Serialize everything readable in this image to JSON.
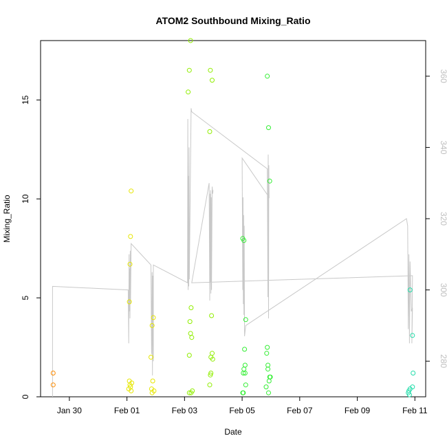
{
  "chart_data": {
    "type": "scatter",
    "title": "ATOM2 Southbound Mixing_Ratio",
    "xlabel": "Date",
    "ylabel": "Mixing_Ratio",
    "xlim": [
      "2017-01-29 00:00",
      "2017-02-11 09:00"
    ],
    "ylim": [
      0,
      18
    ],
    "y2lim": [
      270,
      370
    ],
    "x_ticks": [
      {
        "date": "2017-01-30",
        "label": "Jan 30"
      },
      {
        "date": "2017-02-01",
        "label": "Feb 01"
      },
      {
        "date": "2017-02-03",
        "label": "Feb 03"
      },
      {
        "date": "2017-02-05",
        "label": "Feb 05"
      },
      {
        "date": "2017-02-07",
        "label": "Feb 07"
      },
      {
        "date": "2017-02-09",
        "label": "Feb 09"
      },
      {
        "date": "2017-02-11",
        "label": "Feb 11"
      }
    ],
    "y_ticks": [
      0,
      5,
      10,
      15
    ],
    "y2_ticks": [
      280,
      300,
      320,
      340,
      360
    ],
    "grid": false,
    "legend": "none",
    "point_series": [
      {
        "color": "#ff8c00",
        "points": [
          [
            "2017-01-29 10:30",
            1.2
          ],
          [
            "2017-01-29 10:30",
            0.6
          ]
        ]
      },
      {
        "color": "#e6e600",
        "points": [
          [
            "2017-02-01 02:00",
            4.8
          ],
          [
            "2017-02-01 02:30",
            6.7
          ],
          [
            "2017-02-01 03:00",
            8.1
          ],
          [
            "2017-02-01 03:30",
            10.4
          ],
          [
            "2017-02-01 02:00",
            0.8
          ],
          [
            "2017-02-01 02:30",
            0.6
          ],
          [
            "2017-02-01 03:00",
            0.5
          ],
          [
            "2017-02-01 01:30",
            0.4
          ],
          [
            "2017-02-01 03:30",
            0.3
          ],
          [
            "2017-02-01 04:00",
            0.7
          ],
          [
            "2017-02-01 20:00",
            2.0
          ],
          [
            "2017-02-01 21:00",
            3.6
          ],
          [
            "2017-02-01 22:00",
            4.0
          ],
          [
            "2017-02-01 21:30",
            0.8
          ],
          [
            "2017-02-01 20:30",
            0.4
          ],
          [
            "2017-02-01 22:30",
            0.3
          ],
          [
            "2017-02-01 21:00",
            0.2
          ]
        ]
      },
      {
        "color": "#90ee00",
        "points": [
          [
            "2017-02-03 03:00",
            15.4
          ],
          [
            "2017-02-03 04:00",
            16.5
          ],
          [
            "2017-02-03 05:00",
            18.0
          ],
          [
            "2017-02-03 04:00",
            2.1
          ],
          [
            "2017-02-03 05:00",
            3.2
          ],
          [
            "2017-02-03 06:00",
            3.0
          ],
          [
            "2017-02-03 04:30",
            3.8
          ],
          [
            "2017-02-03 05:30",
            4.5
          ],
          [
            "2017-02-03 04:00",
            0.2
          ],
          [
            "2017-02-03 05:30",
            0.2
          ],
          [
            "2017-02-03 06:30",
            0.3
          ],
          [
            "2017-02-03 21:00",
            13.4
          ],
          [
            "2017-02-03 21:30",
            16.5
          ],
          [
            "2017-02-03 23:00",
            16.0
          ],
          [
            "2017-02-03 22:30",
            4.1
          ],
          [
            "2017-02-03 22:00",
            2.0
          ],
          [
            "2017-02-03 23:00",
            2.2
          ],
          [
            "2017-02-03 21:30",
            1.1
          ],
          [
            "2017-02-03 22:00",
            1.2
          ],
          [
            "2017-02-03 23:30",
            1.9
          ],
          [
            "2017-02-03 21:00",
            0.6
          ]
        ]
      },
      {
        "color": "#33ee33",
        "points": [
          [
            "2017-02-05 00:30",
            8.0
          ],
          [
            "2017-02-05 01:30",
            7.9
          ],
          [
            "2017-02-05 03:00",
            3.9
          ],
          [
            "2017-02-05 02:00",
            2.4
          ],
          [
            "2017-02-05 02:30",
            1.6
          ],
          [
            "2017-02-05 01:30",
            1.4
          ],
          [
            "2017-02-05 02:30",
            1.2
          ],
          [
            "2017-02-05 01:00",
            1.2
          ],
          [
            "2017-02-05 03:00",
            0.6
          ],
          [
            "2017-02-05 01:00",
            0.2
          ],
          [
            "2017-02-05 00:30",
            0.2
          ],
          [
            "2017-02-05 21:00",
            16.2
          ],
          [
            "2017-02-05 22:00",
            13.6
          ],
          [
            "2017-02-05 23:00",
            10.9
          ],
          [
            "2017-02-05 21:00",
            2.5
          ],
          [
            "2017-02-05 20:30",
            2.2
          ],
          [
            "2017-02-05 21:30",
            1.6
          ],
          [
            "2017-02-05 21:30",
            1.4
          ],
          [
            "2017-02-05 23:00",
            1.0
          ],
          [
            "2017-02-05 22:30",
            0.8
          ],
          [
            "2017-02-05 23:30",
            1.0
          ],
          [
            "2017-02-05 20:00",
            0.5
          ],
          [
            "2017-02-05 22:00",
            0.2
          ]
        ]
      },
      {
        "color": "#22ddaa",
        "points": [
          [
            "2017-02-10 20:00",
            5.4
          ],
          [
            "2017-02-10 22:00",
            3.1
          ],
          [
            "2017-02-10 22:30",
            1.2
          ],
          [
            "2017-02-10 22:00",
            0.5
          ],
          [
            "2017-02-10 20:00",
            0.4
          ],
          [
            "2017-02-10 19:00",
            0.3
          ],
          [
            "2017-02-10 18:30",
            0.2
          ],
          [
            "2017-02-10 19:30",
            0.1
          ]
        ]
      }
    ],
    "line_series": {
      "color": "#c8c8c8",
      "axis": "right",
      "points": [
        [
          "2017-01-29 10:00",
          270
        ],
        [
          "2017-01-29 10:00",
          301
        ],
        [
          "2017-02-01 01:00",
          300
        ],
        [
          "2017-02-01 01:30",
          285
        ],
        [
          "2017-02-01 01:45",
          310
        ],
        [
          "2017-02-01 02:00",
          294
        ],
        [
          "2017-02-01 02:15",
          306
        ],
        [
          "2017-02-01 02:30",
          292
        ],
        [
          "2017-02-01 02:45",
          311
        ],
        [
          "2017-02-01 03:00",
          296
        ],
        [
          "2017-02-01 03:30",
          313
        ],
        [
          "2017-02-01 20:00",
          307
        ],
        [
          "2017-02-01 20:30",
          282
        ],
        [
          "2017-02-01 21:00",
          305
        ],
        [
          "2017-02-01 21:15",
          276
        ],
        [
          "2017-02-01 21:30",
          304
        ],
        [
          "2017-02-01 22:00",
          280
        ],
        [
          "2017-02-01 22:00",
          307
        ],
        [
          "2017-02-03 02:30",
          302
        ],
        [
          "2017-02-03 02:45",
          348
        ],
        [
          "2017-02-03 03:00",
          300
        ],
        [
          "2017-02-03 03:15",
          332
        ],
        [
          "2017-02-03 03:30",
          301
        ],
        [
          "2017-02-03 03:45",
          340
        ],
        [
          "2017-02-03 04:00",
          303
        ],
        [
          "2017-02-03 05:30",
          351
        ],
        [
          "2017-02-03 06:00",
          350
        ],
        [
          "2017-02-05 21:00",
          334
        ],
        [
          "2017-02-05 21:30",
          298
        ],
        [
          "2017-02-05 21:45",
          338
        ],
        [
          "2017-02-05 22:00",
          292
        ],
        [
          "2017-02-05 22:15",
          335
        ],
        [
          "2017-02-05 22:30",
          326
        ],
        [
          "2017-02-05 00:00",
          337
        ],
        [
          "2017-02-05 00:30",
          300
        ],
        [
          "2017-02-05 00:45",
          326
        ],
        [
          "2017-02-05 01:00",
          296
        ],
        [
          "2017-02-05 01:15",
          321
        ],
        [
          "2017-02-05 01:30",
          293
        ],
        [
          "2017-02-05 01:45",
          318
        ],
        [
          "2017-02-05 02:00",
          287
        ],
        [
          "2017-02-05 03:00",
          290
        ],
        [
          "2017-02-10 17:00",
          320
        ],
        [
          "2017-02-10 18:00",
          318
        ],
        [
          "2017-02-10 18:30",
          289
        ],
        [
          "2017-02-10 19:00",
          310
        ],
        [
          "2017-02-10 19:30",
          285
        ],
        [
          "2017-02-10 20:00",
          308
        ],
        [
          "2017-02-10 21:00",
          294
        ],
        [
          "2017-02-10 22:00",
          295
        ],
        [
          "2017-02-10 21:30",
          285
        ],
        [
          "2017-02-10 22:00",
          304
        ],
        [
          "2017-02-03 06:00",
          302
        ],
        [
          "2017-02-03 20:30",
          330
        ],
        [
          "2017-02-03 21:00",
          297
        ],
        [
          "2017-02-03 21:15",
          327
        ],
        [
          "2017-02-03 21:30",
          302
        ],
        [
          "2017-02-03 21:45",
          328
        ],
        [
          "2017-02-03 22:00",
          299
        ],
        [
          "2017-02-03 22:15",
          326
        ],
        [
          "2017-02-03 22:30",
          300
        ],
        [
          "2017-02-03 23:00",
          329
        ],
        [
          "2017-02-03 23:30",
          327
        ],
        [
          "2017-02-03 23:45",
          328
        ]
      ]
    }
  }
}
